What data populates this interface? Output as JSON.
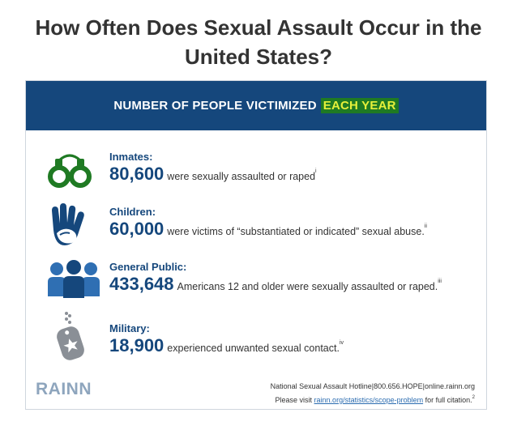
{
  "title": "How Often Does Sexual Assault Occur in the United States?",
  "banner": {
    "text": "NUMBER OF PEOPLE VICTIMIZED",
    "highlight": "EACH YEAR"
  },
  "stats": [
    {
      "icon": "handcuffs-icon",
      "label": "Inmates:",
      "number": "80,600",
      "text": "were sexually assaulted or raped",
      "note": "i"
    },
    {
      "icon": "hand-icon",
      "label": "Children:",
      "number": "60,000",
      "text": "were victims of “substantiated or indicated” sexual abuse.",
      "note": "ii"
    },
    {
      "icon": "people-icon",
      "label": "General Public:",
      "number": "433,648",
      "text": "Americans 12 and older were sexually assaulted or raped.",
      "note": "iii"
    },
    {
      "icon": "dog-tag-icon",
      "label": "Military:",
      "number": "18,900",
      "text": "experienced unwanted sexual contact.",
      "note": "iv"
    }
  ],
  "footer": {
    "logo": "RAINN",
    "hotline": "National Sexual Assault Hotline|800.656.HOPE|online.rainn.org",
    "visit_prefix": "Please visit",
    "visit_link": "rainn.org/statistics/scope-problem",
    "visit_suffix": "for full citation.",
    "visit_note": "2"
  },
  "colors": {
    "navy": "#15477c",
    "green": "#1f7a23",
    "highlight": "#e6f03a",
    "gray": "#8a8f96"
  }
}
